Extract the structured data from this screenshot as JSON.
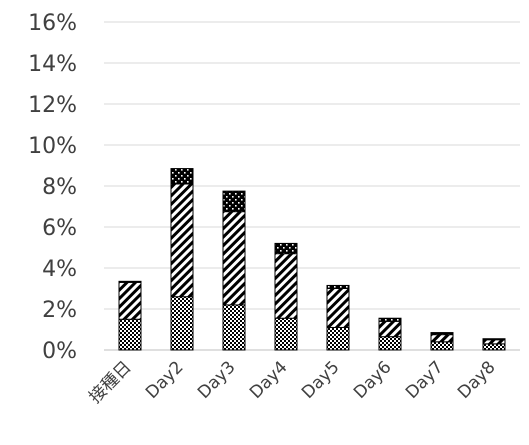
{
  "chart_data": {
    "type": "bar",
    "stacked": true,
    "categories": [
      "接種日",
      "Day2",
      "Day3",
      "Day4",
      "Day5",
      "Day6",
      "Day7",
      "Day8"
    ],
    "series": [
      {
        "pattern": "checker",
        "values": [
          1.5,
          2.6,
          2.2,
          1.55,
          1.1,
          0.65,
          0.4,
          0.3
        ]
      },
      {
        "pattern": "diagonal",
        "values": [
          1.8,
          5.5,
          4.55,
          3.15,
          1.9,
          0.75,
          0.35,
          0.2
        ]
      },
      {
        "pattern": "dots",
        "values": [
          0.05,
          0.75,
          1.0,
          0.5,
          0.15,
          0.15,
          0.1,
          0.05
        ]
      }
    ],
    "yticks": [
      "0%",
      "2%",
      "4%",
      "6%",
      "8%",
      "10%",
      "12%",
      "14%",
      "16%"
    ],
    "ylim": [
      0,
      16
    ],
    "title": "",
    "xlabel": "",
    "ylabel": "",
    "grid": true,
    "legend": "none",
    "colors": {
      "bar_fill": "#000000",
      "grid": "#d9d9d9",
      "text": "#404040"
    }
  }
}
